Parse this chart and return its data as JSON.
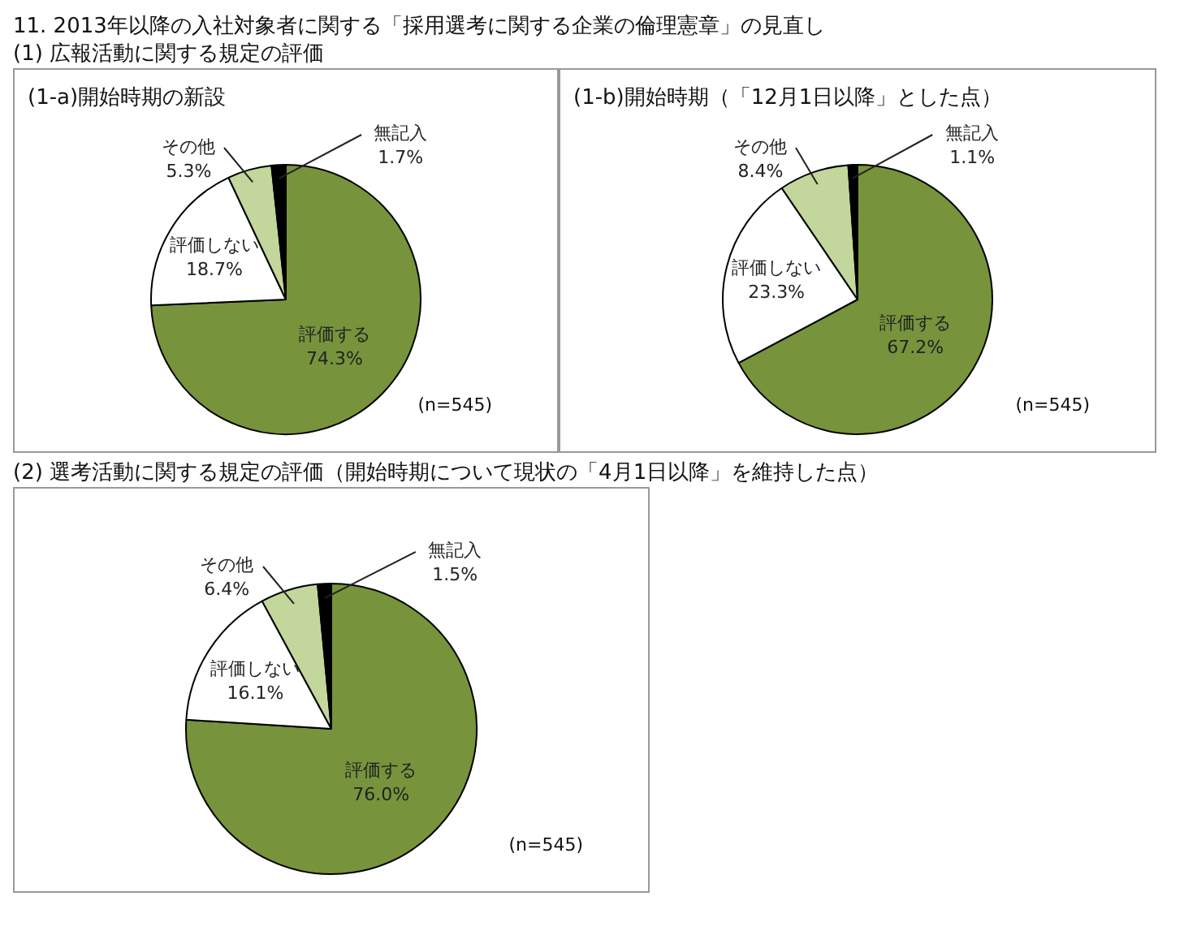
{
  "chart_data": [
    {
      "type": "pie",
      "title": "(1-a)開始時期の新設",
      "categories": [
        "評価する",
        "評価しない",
        "その他",
        "無記入"
      ],
      "values": [
        74.3,
        18.7,
        5.3,
        1.7
      ],
      "value_labels": [
        "74.3%",
        "18.7%",
        "5.3%",
        "1.7%"
      ],
      "colors": [
        "#77933c",
        "#ffffff",
        "#c3d69b",
        "#000000"
      ],
      "annotations": [
        "11.  2013年以降の入社対象者に関する「採用選考に関する企業の倫理憲章」の見直し",
        "(1) 広報活動に関する規定の評価",
        "(n=545)"
      ]
    },
    {
      "type": "pie",
      "title": "(1-b)開始時期（「12月1日以降」とした点）",
      "categories": [
        "評価する",
        "評価しない",
        "その他",
        "無記入"
      ],
      "values": [
        67.2,
        23.3,
        8.4,
        1.1
      ],
      "value_labels": [
        "67.2%",
        "23.3%",
        "8.4%",
        "1.1%"
      ],
      "colors": [
        "#77933c",
        "#ffffff",
        "#c3d69b",
        "#000000"
      ],
      "annotations": [
        "(n=545)"
      ]
    },
    {
      "type": "pie",
      "categories": [
        "評価する",
        "評価しない",
        "その他",
        "無記入"
      ],
      "values": [
        76.0,
        16.1,
        6.4,
        1.5
      ],
      "value_labels": [
        "76.0%",
        "16.1%",
        "6.4%",
        "1.5%"
      ],
      "colors": [
        "#77933c",
        "#ffffff",
        "#c3d69b",
        "#000000"
      ],
      "annotations": [
        "(2) 選考活動に関する規定の評価（開始時期について現状の「4月1日以降」を維持した点）",
        "(n=545)"
      ]
    }
  ]
}
